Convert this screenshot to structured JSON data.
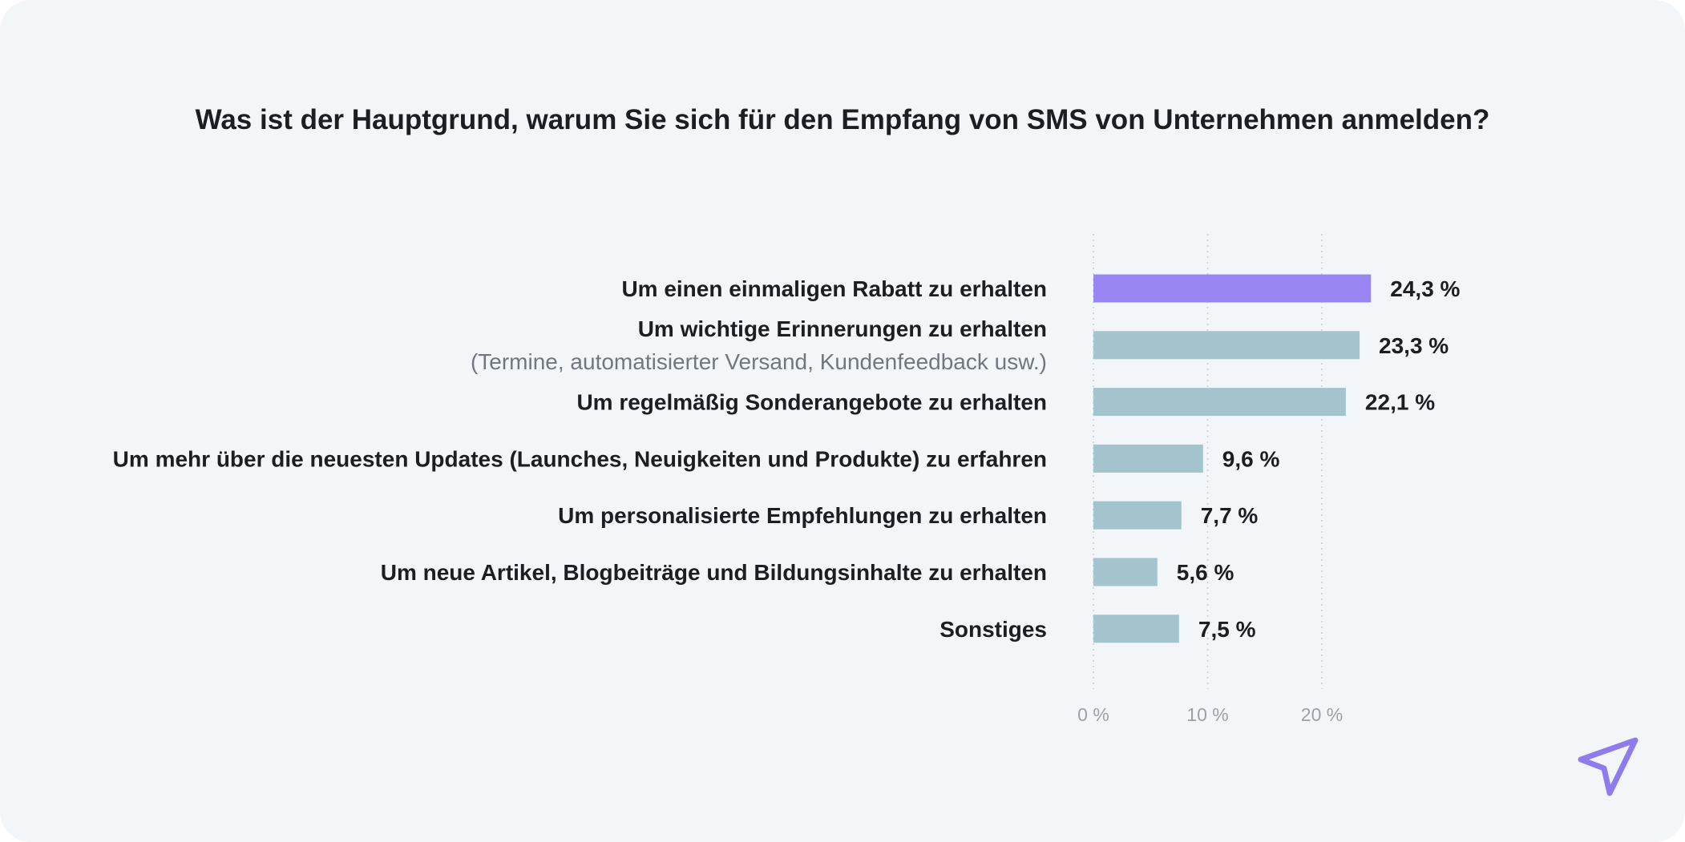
{
  "chart_data": {
    "type": "bar",
    "orientation": "horizontal",
    "title": "Was ist der Hauptgrund, warum Sie sich für den Empfang von SMS von Unternehmen anmelden?",
    "categories": [
      "Um einen einmaligen Rabatt zu erhalten",
      "Um wichtige Erinnerungen zu erhalten",
      "Um regelmäßig Sonderangebote zu erhalten",
      "Um mehr über die neuesten Updates (Launches, Neuigkeiten und Produkte) zu erfahren",
      "Um personalisierte Empfehlungen zu erhalten",
      "Um neue Artikel, Blogbeiträge und Bildungsinhalte zu erhalten",
      "Sonstiges"
    ],
    "sublabels": [
      "",
      "(Termine, automatisierter Versand, Kundenfeedback usw.)",
      "",
      "",
      "",
      "",
      ""
    ],
    "values": [
      24.3,
      23.3,
      22.1,
      9.6,
      7.7,
      5.6,
      7.5
    ],
    "value_labels": [
      "24,3 %",
      "23,3 %",
      "22,1 %",
      "9,6 %",
      "7,7 %",
      "5,6 %",
      "7,5 %"
    ],
    "xticks": [
      0,
      10,
      20
    ],
    "xtick_labels": [
      "0 %",
      "10 %",
      "20 %"
    ],
    "xlim": [
      0,
      30
    ],
    "grid": true,
    "highlight_index": 0,
    "colors": {
      "highlight": "#9a86f2",
      "default": "#a3c3cd"
    }
  },
  "logo": {
    "icon": "paper-plane-icon",
    "color": "#8f7aee"
  }
}
